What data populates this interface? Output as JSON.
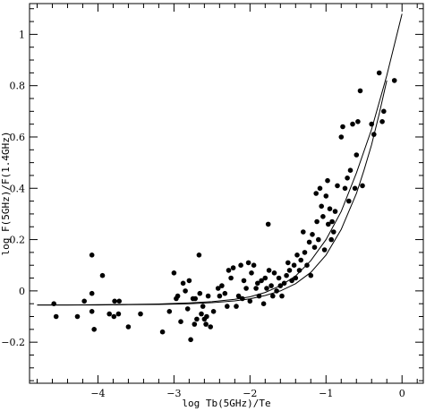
{
  "chart_data": {
    "type": "scatter",
    "title": "",
    "xlabel": "log Tb(5GHz)/Te",
    "ylabel": "log  F(5GHz)/F(1.4GHz)",
    "xlim": [
      -4.9,
      0.28
    ],
    "ylim": [
      -0.36,
      1.12
    ],
    "x_ticks": [
      -4,
      -3,
      -2,
      -1,
      0
    ],
    "x_tick_labels": [
      "−4",
      "−3",
      "−2",
      "−1",
      "0"
    ],
    "y_ticks": [
      -0.2,
      0,
      0.2,
      0.4,
      0.6,
      0.8,
      1
    ],
    "y_tick_labels": [
      "−0.2",
      "0",
      "0.2",
      "0.4",
      "0.6",
      "0.8",
      "1"
    ],
    "grid": false,
    "legend": "none",
    "curves": [
      {
        "x": [
          -4.8,
          -4.4,
          -4.0,
          -3.6,
          -3.2,
          -2.8,
          -2.5,
          -2.2,
          -2.0,
          -1.8,
          -1.6,
          -1.4,
          -1.2,
          -1.0,
          -0.8,
          -0.6,
          -0.4,
          -0.2,
          0.0
        ],
        "y": [
          -0.055,
          -0.055,
          -0.054,
          -0.053,
          -0.051,
          -0.047,
          -0.042,
          -0.033,
          -0.023,
          -0.006,
          0.02,
          0.058,
          0.118,
          0.2,
          0.31,
          0.46,
          0.63,
          0.84,
          1.08
        ]
      },
      {
        "x": [
          -4.8,
          -4.4,
          -4.0,
          -3.6,
          -3.2,
          -2.8,
          -2.5,
          -2.2,
          -2.0,
          -1.8,
          -1.6,
          -1.4,
          -1.2,
          -1.0,
          -0.8,
          -0.6,
          -0.5,
          -0.4,
          -0.3,
          -0.2
        ],
        "y": [
          -0.055,
          -0.055,
          -0.055,
          -0.054,
          -0.053,
          -0.05,
          -0.046,
          -0.039,
          -0.031,
          -0.018,
          0.0,
          0.028,
          0.072,
          0.14,
          0.24,
          0.38,
          0.47,
          0.57,
          0.69,
          0.82
        ]
      }
    ],
    "points": [
      {
        "x": -4.58,
        "y": -0.05
      },
      {
        "x": -4.55,
        "y": -0.1
      },
      {
        "x": -4.27,
        "y": -0.1
      },
      {
        "x": -4.18,
        "y": -0.04
      },
      {
        "x": -4.08,
        "y": 0.14
      },
      {
        "x": -4.08,
        "y": -0.01
      },
      {
        "x": -4.08,
        "y": -0.08
      },
      {
        "x": -4.05,
        "y": -0.15
      },
      {
        "x": -3.94,
        "y": 0.06
      },
      {
        "x": -3.85,
        "y": -0.09
      },
      {
        "x": -3.79,
        "y": -0.1
      },
      {
        "x": -3.73,
        "y": -0.09
      },
      {
        "x": -3.78,
        "y": -0.04
      },
      {
        "x": -3.72,
        "y": -0.04
      },
      {
        "x": -3.6,
        "y": -0.14
      },
      {
        "x": -3.44,
        "y": -0.09
      },
      {
        "x": -3.15,
        "y": -0.16
      },
      {
        "x": -3.06,
        "y": -0.08
      },
      {
        "x": -3.0,
        "y": 0.07
      },
      {
        "x": -2.97,
        "y": -0.03
      },
      {
        "x": -2.95,
        "y": -0.02
      },
      {
        "x": -2.91,
        "y": -0.12
      },
      {
        "x": -2.88,
        "y": 0.03
      },
      {
        "x": -2.85,
        "y": 0.0
      },
      {
        "x": -2.82,
        "y": -0.07
      },
      {
        "x": -2.8,
        "y": 0.04
      },
      {
        "x": -2.78,
        "y": -0.19
      },
      {
        "x": -2.75,
        "y": -0.03
      },
      {
        "x": -2.73,
        "y": -0.13
      },
      {
        "x": -2.72,
        "y": -0.03
      },
      {
        "x": -2.7,
        "y": -0.11
      },
      {
        "x": -2.67,
        "y": 0.14
      },
      {
        "x": -2.66,
        "y": -0.01
      },
      {
        "x": -2.64,
        "y": -0.09
      },
      {
        "x": -2.62,
        "y": -0.06
      },
      {
        "x": -2.6,
        "y": -0.11
      },
      {
        "x": -2.58,
        "y": -0.13
      },
      {
        "x": -2.57,
        "y": -0.1
      },
      {
        "x": -2.55,
        "y": -0.02
      },
      {
        "x": -2.52,
        "y": -0.14
      },
      {
        "x": -2.48,
        "y": -0.08
      },
      {
        "x": -2.42,
        "y": 0.01
      },
      {
        "x": -2.4,
        "y": -0.02
      },
      {
        "x": -2.37,
        "y": 0.02
      },
      {
        "x": -2.33,
        "y": -0.01
      },
      {
        "x": -2.3,
        "y": -0.06
      },
      {
        "x": -2.28,
        "y": 0.08
      },
      {
        "x": -2.25,
        "y": 0.05
      },
      {
        "x": -2.22,
        "y": 0.09
      },
      {
        "x": -2.18,
        "y": -0.06
      },
      {
        "x": -2.15,
        "y": -0.02
      },
      {
        "x": -2.12,
        "y": 0.1
      },
      {
        "x": -2.1,
        "y": -0.03
      },
      {
        "x": -2.08,
        "y": 0.04
      },
      {
        "x": -2.05,
        "y": 0.01
      },
      {
        "x": -2.02,
        "y": 0.11
      },
      {
        "x": -2.0,
        "y": -0.04
      },
      {
        "x": -1.98,
        "y": 0.07
      },
      {
        "x": -1.95,
        "y": 0.1
      },
      {
        "x": -1.92,
        "y": 0.01
      },
      {
        "x": -1.9,
        "y": 0.03
      },
      {
        "x": -1.88,
        "y": -0.02
      },
      {
        "x": -1.85,
        "y": 0.04
      },
      {
        "x": -1.82,
        "y": -0.05
      },
      {
        "x": -1.8,
        "y": 0.05
      },
      {
        "x": -1.78,
        "y": 0.01
      },
      {
        "x": -1.76,
        "y": 0.26
      },
      {
        "x": -1.75,
        "y": 0.08
      },
      {
        "x": -1.72,
        "y": 0.02
      },
      {
        "x": -1.7,
        "y": -0.02
      },
      {
        "x": -1.68,
        "y": 0.07
      },
      {
        "x": -1.65,
        "y": 0.0
      },
      {
        "x": -1.62,
        "y": 0.05
      },
      {
        "x": -1.6,
        "y": 0.02
      },
      {
        "x": -1.58,
        "y": -0.02
      },
      {
        "x": -1.55,
        "y": 0.03
      },
      {
        "x": -1.52,
        "y": 0.06
      },
      {
        "x": -1.5,
        "y": 0.11
      },
      {
        "x": -1.48,
        "y": 0.08
      },
      {
        "x": -1.45,
        "y": 0.04
      },
      {
        "x": -1.42,
        "y": 0.1
      },
      {
        "x": -1.4,
        "y": 0.05
      },
      {
        "x": -1.38,
        "y": 0.14
      },
      {
        "x": -1.35,
        "y": 0.08
      },
      {
        "x": -1.33,
        "y": 0.12
      },
      {
        "x": -1.3,
        "y": 0.23
      },
      {
        "x": -1.28,
        "y": 0.15
      },
      {
        "x": -1.25,
        "y": 0.1
      },
      {
        "x": -1.22,
        "y": 0.19
      },
      {
        "x": -1.2,
        "y": 0.06
      },
      {
        "x": -1.18,
        "y": 0.22
      },
      {
        "x": -1.15,
        "y": 0.17
      },
      {
        "x": -1.13,
        "y": 0.38
      },
      {
        "x": -1.12,
        "y": 0.27
      },
      {
        "x": -1.1,
        "y": 0.2
      },
      {
        "x": -1.08,
        "y": 0.4
      },
      {
        "x": -1.06,
        "y": 0.33
      },
      {
        "x": -1.04,
        "y": 0.29
      },
      {
        "x": -1.02,
        "y": 0.16
      },
      {
        "x": -1.0,
        "y": 0.37
      },
      {
        "x": -0.98,
        "y": 0.43
      },
      {
        "x": -0.97,
        "y": 0.26
      },
      {
        "x": -0.95,
        "y": 0.32
      },
      {
        "x": -0.93,
        "y": 0.2
      },
      {
        "x": -0.92,
        "y": 0.27
      },
      {
        "x": -0.9,
        "y": 0.23
      },
      {
        "x": -0.88,
        "y": 0.31
      },
      {
        "x": -0.85,
        "y": 0.41
      },
      {
        "x": -0.8,
        "y": 0.6
      },
      {
        "x": -0.78,
        "y": 0.64
      },
      {
        "x": -0.75,
        "y": 0.4
      },
      {
        "x": -0.72,
        "y": 0.44
      },
      {
        "x": -0.7,
        "y": 0.35
      },
      {
        "x": -0.68,
        "y": 0.47
      },
      {
        "x": -0.65,
        "y": 0.65
      },
      {
        "x": -0.62,
        "y": 0.4
      },
      {
        "x": -0.6,
        "y": 0.53
      },
      {
        "x": -0.58,
        "y": 0.66
      },
      {
        "x": -0.55,
        "y": 0.78
      },
      {
        "x": -0.52,
        "y": 0.41
      },
      {
        "x": -0.4,
        "y": 0.65
      },
      {
        "x": -0.37,
        "y": 0.61
      },
      {
        "x": -0.3,
        "y": 0.85
      },
      {
        "x": -0.26,
        "y": 0.66
      },
      {
        "x": -0.24,
        "y": 0.7
      },
      {
        "x": -0.1,
        "y": 0.82
      }
    ]
  }
}
